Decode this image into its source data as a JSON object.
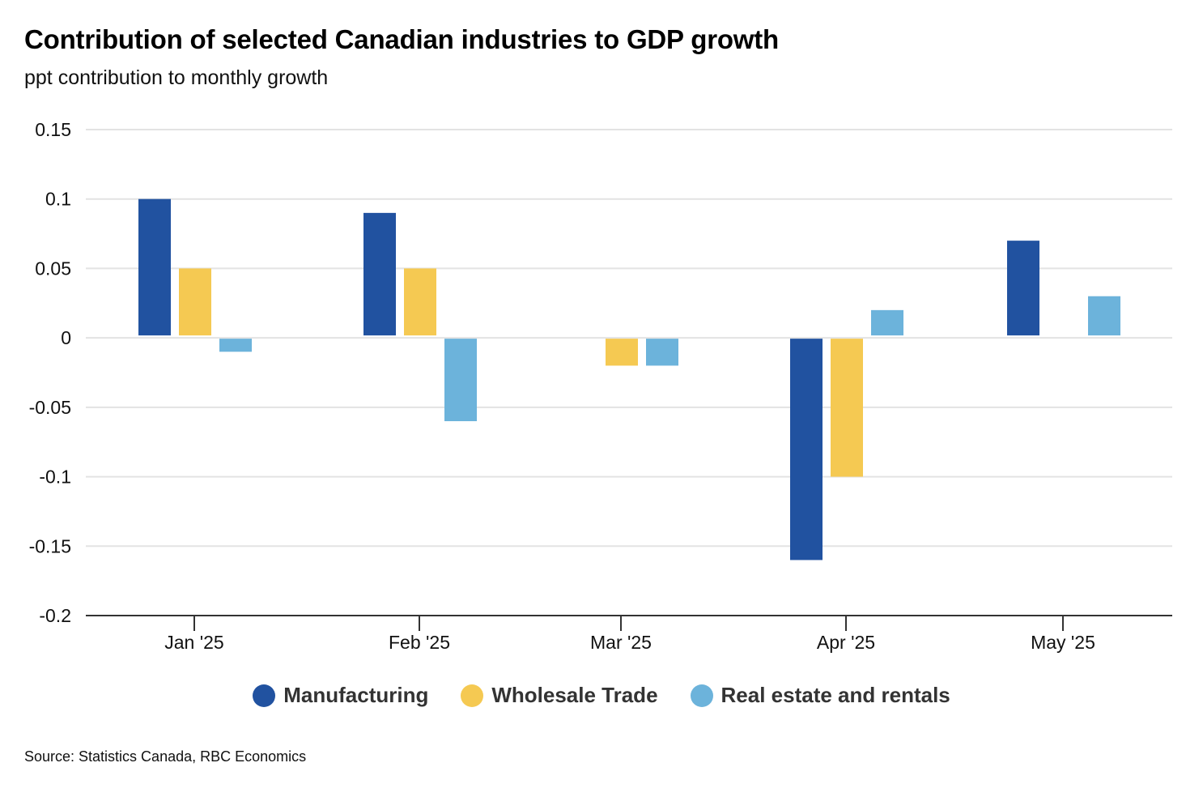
{
  "chart_data": {
    "type": "bar",
    "title": "Contribution of selected Canadian industries to GDP growth",
    "subtitle": "ppt contribution to monthly growth",
    "xlabel": "",
    "ylabel": "ppt contribution to monthly growth",
    "categories": [
      "Jan '25",
      "Feb '25",
      "Mar '25",
      "Apr '25",
      "May '25"
    ],
    "series": [
      {
        "name": "Manufacturing",
        "color": "#2152A0",
        "values": [
          0.1,
          0.09,
          0.0,
          -0.16,
          0.07
        ]
      },
      {
        "name": "Wholesale Trade",
        "color": "#F5C952",
        "values": [
          0.05,
          0.05,
          -0.02,
          -0.1,
          0.0
        ]
      },
      {
        "name": "Real estate and rentals",
        "color": "#6CB3DB",
        "values": [
          -0.01,
          -0.06,
          -0.02,
          0.02,
          0.03
        ]
      }
    ],
    "ylim": [
      -0.2,
      0.15
    ],
    "yticks": [
      "0.15",
      "0.1",
      "0.05",
      "0",
      "-0.05",
      "-0.1",
      "-0.15",
      "-0.2"
    ],
    "ytick_values": [
      0.15,
      0.1,
      0.05,
      0,
      -0.05,
      -0.1,
      -0.15,
      -0.2
    ],
    "grid": true,
    "legend_position": "bottom-center",
    "source": "Source: Statistics Canada, RBC Economics"
  }
}
